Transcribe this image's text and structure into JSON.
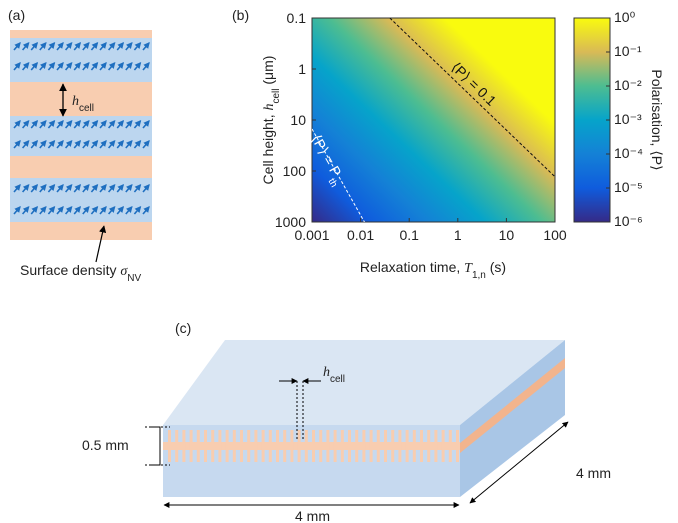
{
  "panel_a": {
    "label": "(a)",
    "h_label": {
      "symbol": "h",
      "subscript": "cell"
    },
    "caption": {
      "text": "Surface density ",
      "symbol": "σ",
      "subscript": "NV"
    }
  },
  "chart_data": {
    "type": "heatmap",
    "panel_label": "(b)",
    "xlabel": {
      "text": "Relaxation time, ",
      "symbol": "T",
      "subscript": "1,n",
      "unit": " (s)"
    },
    "ylabel": {
      "text": "Cell height, ",
      "symbol": "h",
      "subscript": "cell",
      "unit": " (μm)"
    },
    "xlim": [
      0.001,
      100
    ],
    "xticks": [
      0.001,
      0.01,
      0.1,
      1,
      10,
      100
    ],
    "xscale": "log",
    "ylim": [
      0.1,
      1000
    ],
    "yticks": [
      0.1,
      1,
      10,
      100,
      1000
    ],
    "yscale": "log",
    "y_reversed": true,
    "colorbar": {
      "label": "Polarisation, ⟨P⟩",
      "clim": [
        1e-06,
        1
      ],
      "cticks": [
        {
          "value": 1,
          "label": "10⁰"
        },
        {
          "value": 0.1,
          "label": "10⁻¹"
        },
        {
          "value": 0.01,
          "label": "10⁻²"
        },
        {
          "value": 0.001,
          "label": "10⁻³"
        },
        {
          "value": 0.0001,
          "label": "10⁻⁴"
        },
        {
          "value": 1e-05,
          "label": "10⁻⁵"
        },
        {
          "value": 1e-06,
          "label": "10⁻⁶"
        }
      ],
      "colors": [
        "#352a87",
        "#0f5cdd",
        "#1481d6",
        "#06a4ca",
        "#4dbd91",
        "#d9ba56",
        "#f9fb0e"
      ]
    },
    "contours": [
      {
        "label": {
          "text": "⟨P⟩ = 0.1"
        },
        "color": "#111111",
        "x": [
          0.04,
          100
        ],
        "y": [
          0.1,
          130
        ]
      },
      {
        "label": {
          "text": "⟨P⟩ = P",
          "subscript": "th"
        },
        "color": "#ffffff",
        "x": [
          0.001,
          0.012
        ],
        "y": [
          15,
          1000
        ]
      }
    ]
  },
  "panel_c": {
    "label": "(c)",
    "h_label": {
      "symbol": "h",
      "subscript": "cell"
    },
    "thickness": "0.5 mm",
    "width": "4 mm",
    "depth": "4 mm"
  }
}
